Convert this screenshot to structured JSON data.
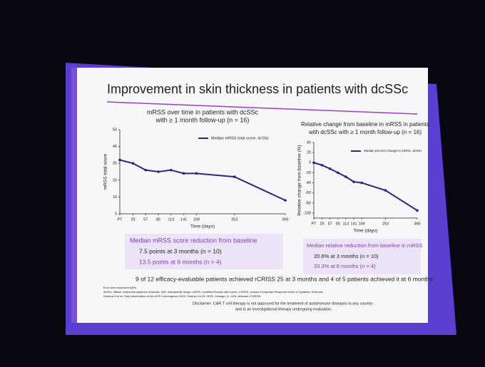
{
  "slide": {
    "title": "Improvement in skin thickness in patients with dcSSc",
    "left_box": {
      "heading": "Median mRSS score reduction from baseline",
      "items": [
        "7.5 points at 3 months (n = 10)",
        "13.5 points at 6 months (n = 4)"
      ]
    },
    "right_box": {
      "heading": "Median relative reduction from baseline in mRSS",
      "items": [
        "20.6% at 3 months (n = 10)",
        "33.3% at 6 months (n = 4)"
      ]
    },
    "summary": "9 of 12 efficacy-evaluable patients achieved rCRISS 25 at 3 months and 4 of 5 patients achieved it at 6 months",
    "footnotes": [
      "Error bars represent IQRs.",
      "dcSSc, diffuse cutaneous systemic sclerosis; IQR, interquartile range; mRSS, modified Rodnan skin score; rCRISS, revised Composite Response Index in Systemic Sclerosis.",
      "Khanna D et al. Oral presentation at the ACR Convergence 2025; October 24-29, 2025; Chicago, IL, USA. Abstract 2728035."
    ],
    "disclaimer": [
      "Disclaimer: CAR T cell therapy is not approved for the treatment of autoimmune diseases in any country",
      "and is an investigational therapy undergoing evaluation."
    ]
  },
  "chart_data": [
    {
      "type": "line",
      "title": [
        "mRSS over time in patients with dcSSc",
        "with ≥ 1 month follow-up (n = 16)"
      ],
      "xlabel": "Time (days)",
      "ylabel": "mRSS total score",
      "x": [
        0,
        29,
        57,
        85,
        113,
        141,
        169,
        253,
        365
      ],
      "series": [
        {
          "name": "Median mRSS total score, dcSSc",
          "color": "#2a2a7a",
          "values": [
            32,
            30,
            26,
            25,
            26,
            24,
            24,
            22,
            8
          ]
        }
      ],
      "xlim": [
        0,
        365
      ],
      "xticks": [
        {
          "value": 0,
          "label": "PT"
        },
        29,
        57,
        85,
        113,
        141,
        169,
        253,
        365
      ],
      "ylim": [
        0,
        50
      ],
      "yticks": [
        0,
        10,
        20,
        30,
        40,
        50
      ]
    },
    {
      "type": "line",
      "title": [
        "Relative change from baseline in mRSS in patients",
        "with dcSSc with ≥ 1 month follow-up (n = 16)"
      ],
      "xlabel": "Time (days)",
      "ylabel": "Relative change from baseline (%)",
      "x": [
        0,
        29,
        57,
        85,
        113,
        141,
        169,
        253,
        365
      ],
      "series": [
        {
          "name": "Median percent change in mRSS, dcSSc",
          "color": "#2a2a7a",
          "values": [
            0,
            -5,
            -12,
            -20,
            -28,
            -38,
            -40,
            -55,
            -95
          ]
        }
      ],
      "xlim": [
        0,
        365
      ],
      "xticks": [
        {
          "value": 0,
          "label": "PT"
        },
        29,
        57,
        85,
        113,
        141,
        169,
        253,
        365
      ],
      "ylim": [
        -110,
        40
      ],
      "yticks": [
        -100,
        -80,
        -60,
        -40,
        -20,
        0,
        20,
        40
      ]
    }
  ]
}
